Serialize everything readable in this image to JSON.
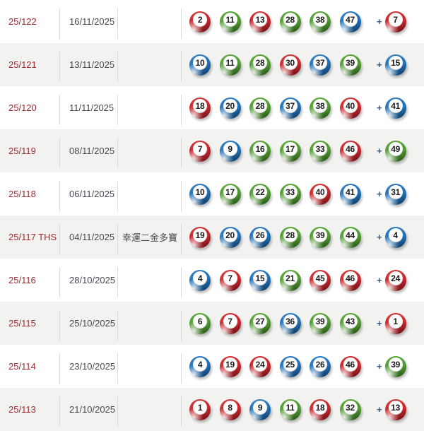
{
  "ui": {
    "plus_sign": "+",
    "colors": {
      "row_alt_bg": "#F2F2F1",
      "separator": "#D9D9D9",
      "draw_number_text": "#9C2A30",
      "date_text": "#454A52",
      "remark_text": "#454A52",
      "plus_text": "#3E5B77",
      "ball_number_text": "#1B1B1B"
    }
  },
  "ball_colors": {
    "red": {
      "main": "#C8252C",
      "dark": "#8E1A1F",
      "light": "#E2574E"
    },
    "green": {
      "main": "#4E9B31",
      "dark": "#346F1C",
      "light": "#79BE51"
    },
    "blue": {
      "main": "#1F6FB6",
      "dark": "#154F83",
      "light": "#5598D6"
    }
  },
  "table": {
    "rows": [
      {
        "draw_no": "25/122",
        "date": "16/11/2025",
        "remark": "",
        "balls": [
          {
            "n": 2,
            "c": "red"
          },
          {
            "n": 11,
            "c": "green"
          },
          {
            "n": 13,
            "c": "red"
          },
          {
            "n": 28,
            "c": "green"
          },
          {
            "n": 38,
            "c": "green"
          },
          {
            "n": 47,
            "c": "blue"
          }
        ],
        "extra": {
          "n": 7,
          "c": "red"
        }
      },
      {
        "draw_no": "25/121",
        "date": "13/11/2025",
        "remark": "",
        "balls": [
          {
            "n": 10,
            "c": "blue"
          },
          {
            "n": 11,
            "c": "green"
          },
          {
            "n": 28,
            "c": "green"
          },
          {
            "n": 30,
            "c": "red"
          },
          {
            "n": 37,
            "c": "blue"
          },
          {
            "n": 39,
            "c": "green"
          }
        ],
        "extra": {
          "n": 15,
          "c": "blue"
        }
      },
      {
        "draw_no": "25/120",
        "date": "11/11/2025",
        "remark": "",
        "balls": [
          {
            "n": 18,
            "c": "red"
          },
          {
            "n": 20,
            "c": "blue"
          },
          {
            "n": 28,
            "c": "green"
          },
          {
            "n": 37,
            "c": "blue"
          },
          {
            "n": 38,
            "c": "green"
          },
          {
            "n": 40,
            "c": "red"
          }
        ],
        "extra": {
          "n": 41,
          "c": "blue"
        }
      },
      {
        "draw_no": "25/119",
        "date": "08/11/2025",
        "remark": "",
        "balls": [
          {
            "n": 7,
            "c": "red"
          },
          {
            "n": 9,
            "c": "blue"
          },
          {
            "n": 16,
            "c": "green"
          },
          {
            "n": 17,
            "c": "green"
          },
          {
            "n": 33,
            "c": "green"
          },
          {
            "n": 46,
            "c": "red"
          }
        ],
        "extra": {
          "n": 49,
          "c": "green"
        }
      },
      {
        "draw_no": "25/118",
        "date": "06/11/2025",
        "remark": "",
        "balls": [
          {
            "n": 10,
            "c": "blue"
          },
          {
            "n": 17,
            "c": "green"
          },
          {
            "n": 22,
            "c": "green"
          },
          {
            "n": 33,
            "c": "green"
          },
          {
            "n": 40,
            "c": "red"
          },
          {
            "n": 41,
            "c": "blue"
          }
        ],
        "extra": {
          "n": 31,
          "c": "blue"
        }
      },
      {
        "draw_no": "25/117 THS",
        "date": "04/11/2025",
        "remark": "幸運二金多寶",
        "balls": [
          {
            "n": 19,
            "c": "red"
          },
          {
            "n": 20,
            "c": "blue"
          },
          {
            "n": 26,
            "c": "blue"
          },
          {
            "n": 28,
            "c": "green"
          },
          {
            "n": 39,
            "c": "green"
          },
          {
            "n": 44,
            "c": "green"
          }
        ],
        "extra": {
          "n": 4,
          "c": "blue"
        }
      },
      {
        "draw_no": "25/116",
        "date": "28/10/2025",
        "remark": "",
        "balls": [
          {
            "n": 4,
            "c": "blue"
          },
          {
            "n": 7,
            "c": "red"
          },
          {
            "n": 15,
            "c": "blue"
          },
          {
            "n": 21,
            "c": "green"
          },
          {
            "n": 45,
            "c": "red"
          },
          {
            "n": 46,
            "c": "red"
          }
        ],
        "extra": {
          "n": 24,
          "c": "red"
        }
      },
      {
        "draw_no": "25/115",
        "date": "25/10/2025",
        "remark": "",
        "balls": [
          {
            "n": 6,
            "c": "green"
          },
          {
            "n": 7,
            "c": "red"
          },
          {
            "n": 27,
            "c": "green"
          },
          {
            "n": 36,
            "c": "blue"
          },
          {
            "n": 39,
            "c": "green"
          },
          {
            "n": 43,
            "c": "green"
          }
        ],
        "extra": {
          "n": 1,
          "c": "red"
        }
      },
      {
        "draw_no": "25/114",
        "date": "23/10/2025",
        "remark": "",
        "balls": [
          {
            "n": 4,
            "c": "blue"
          },
          {
            "n": 19,
            "c": "red"
          },
          {
            "n": 24,
            "c": "red"
          },
          {
            "n": 25,
            "c": "blue"
          },
          {
            "n": 26,
            "c": "blue"
          },
          {
            "n": 46,
            "c": "red"
          }
        ],
        "extra": {
          "n": 39,
          "c": "green"
        }
      },
      {
        "draw_no": "25/113",
        "date": "21/10/2025",
        "remark": "",
        "balls": [
          {
            "n": 1,
            "c": "red"
          },
          {
            "n": 8,
            "c": "red"
          },
          {
            "n": 9,
            "c": "blue"
          },
          {
            "n": 11,
            "c": "green"
          },
          {
            "n": 18,
            "c": "red"
          },
          {
            "n": 32,
            "c": "green"
          }
        ],
        "extra": {
          "n": 13,
          "c": "red"
        }
      }
    ]
  }
}
